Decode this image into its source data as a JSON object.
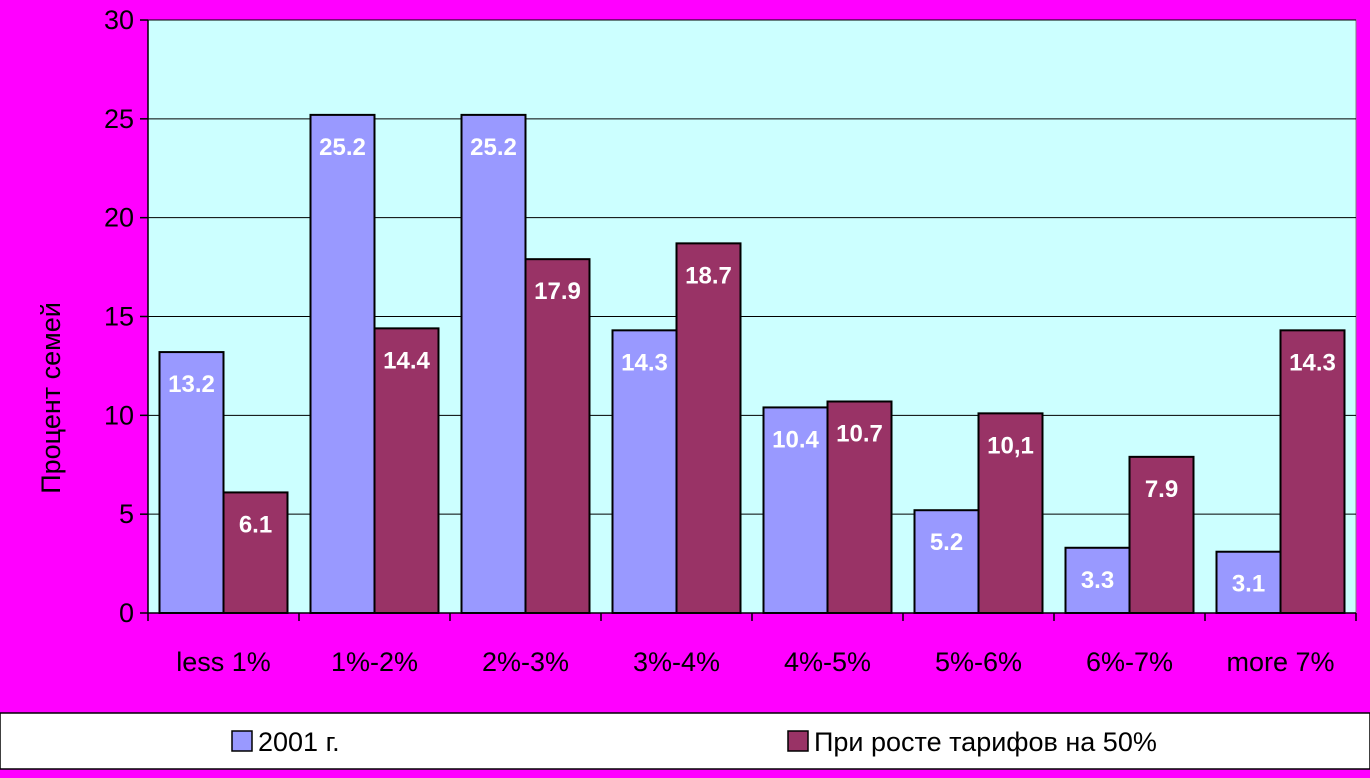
{
  "chart_data": {
    "type": "bar",
    "ylabel": "Процент семей",
    "xlabel": "",
    "ylim": [
      0,
      30
    ],
    "yticks": [
      0,
      5,
      10,
      15,
      20,
      25,
      30
    ],
    "grid": true,
    "legend_position": "bottom",
    "categories": [
      "less 1%",
      "1%-2%",
      "2%-3%",
      "3%-4%",
      "4%-5%",
      "5%-6%",
      "6%-7%",
      "more 7%"
    ],
    "series": [
      {
        "name": "2001 г.",
        "color": "#9999ff",
        "values": [
          13.2,
          25.2,
          25.2,
          14.3,
          10.4,
          5.2,
          3.3,
          3.1
        ],
        "labels": [
          "13.2",
          "25.2",
          "25.2",
          "14.3",
          "10.4",
          "5.2",
          "3.3",
          "3.1"
        ]
      },
      {
        "name": "При росте тарифов на 50%",
        "color": "#993366",
        "values": [
          6.1,
          14.4,
          17.9,
          18.7,
          10.7,
          10.1,
          7.9,
          14.3
        ],
        "labels": [
          "6.1",
          "14.4",
          "17.9",
          "18.7",
          "10.7",
          "10,1",
          "7.9",
          "14.3"
        ]
      }
    ],
    "colors": {
      "background": "#ff00ff",
      "plot_area": "#ccffff",
      "legend_background": "#ffffff",
      "data_label_text": "#ffffff"
    }
  }
}
